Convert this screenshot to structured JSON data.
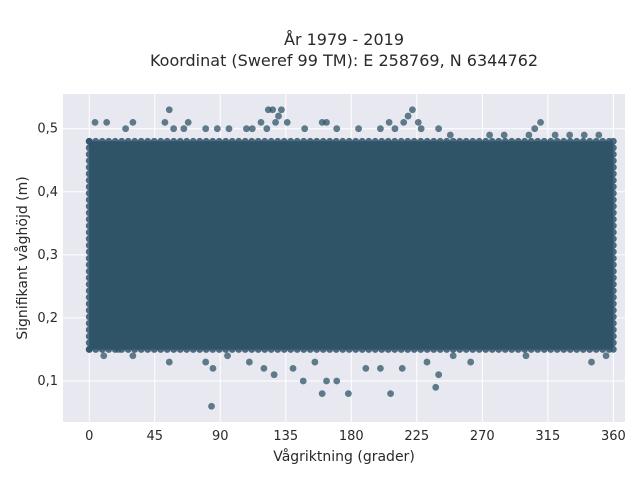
{
  "chart_data": {
    "type": "scatter",
    "title": [
      "År 1979 - 2019",
      "Koordinat (Sweref 99 TM): E 258769, N 6344762"
    ],
    "xlabel": "Vågriktning (grader)",
    "ylabel": "Signifikant våghöjd (m)",
    "xlim": [
      -18,
      368
    ],
    "ylim": [
      0.035,
      0.555
    ],
    "xticks": [
      0,
      45,
      90,
      135,
      180,
      225,
      270,
      315,
      360
    ],
    "xtick_labels": [
      "0",
      "45",
      "90",
      "135",
      "180",
      "225",
      "270",
      "315",
      "360"
    ],
    "yticks": [
      0.1,
      0.2,
      0.3,
      0.4,
      0.5
    ],
    "ytick_labels": [
      "0,1",
      "0,2",
      "0,3",
      "0,4",
      "0,5"
    ],
    "grid": true,
    "legend": "none",
    "colors": {
      "marker": "#2f5468",
      "plot_bg": "#e8e8f0",
      "grid": "#ffffff"
    },
    "dense_region": {
      "x": [
        0,
        360
      ],
      "y": [
        0.15,
        0.48
      ]
    },
    "points": [
      [
        84,
        0.06
      ],
      [
        160,
        0.08
      ],
      [
        178,
        0.08
      ],
      [
        207,
        0.08
      ],
      [
        163,
        0.1
      ],
      [
        170,
        0.1
      ],
      [
        238,
        0.09
      ],
      [
        240,
        0.11
      ],
      [
        127,
        0.11
      ],
      [
        147,
        0.1
      ],
      [
        200,
        0.12
      ],
      [
        190,
        0.12
      ],
      [
        140,
        0.12
      ],
      [
        120,
        0.12
      ],
      [
        215,
        0.12
      ],
      [
        55,
        0.13
      ],
      [
        80,
        0.13
      ],
      [
        85,
        0.12
      ],
      [
        232,
        0.13
      ],
      [
        262,
        0.13
      ],
      [
        345,
        0.13
      ],
      [
        30,
        0.14
      ],
      [
        10,
        0.14
      ],
      [
        95,
        0.14
      ],
      [
        110,
        0.13
      ],
      [
        155,
        0.13
      ],
      [
        250,
        0.14
      ],
      [
        300,
        0.14
      ],
      [
        355,
        0.14
      ],
      [
        20,
        0.15
      ],
      [
        4,
        0.51
      ],
      [
        12,
        0.51
      ],
      [
        25,
        0.5
      ],
      [
        30,
        0.51
      ],
      [
        52,
        0.51
      ],
      [
        55,
        0.53
      ],
      [
        58,
        0.5
      ],
      [
        68,
        0.51
      ],
      [
        65,
        0.5
      ],
      [
        80,
        0.5
      ],
      [
        88,
        0.5
      ],
      [
        96,
        0.5
      ],
      [
        108,
        0.5
      ],
      [
        112,
        0.5
      ],
      [
        118,
        0.51
      ],
      [
        122,
        0.5
      ],
      [
        123,
        0.53
      ],
      [
        126,
        0.53
      ],
      [
        128,
        0.51
      ],
      [
        130,
        0.52
      ],
      [
        132,
        0.53
      ],
      [
        136,
        0.51
      ],
      [
        148,
        0.5
      ],
      [
        160,
        0.51
      ],
      [
        163,
        0.51
      ],
      [
        170,
        0.5
      ],
      [
        185,
        0.5
      ],
      [
        200,
        0.5
      ],
      [
        206,
        0.51
      ],
      [
        210,
        0.5
      ],
      [
        216,
        0.51
      ],
      [
        219,
        0.52
      ],
      [
        222,
        0.53
      ],
      [
        226,
        0.51
      ],
      [
        228,
        0.5
      ],
      [
        240,
        0.5
      ],
      [
        248,
        0.49
      ],
      [
        275,
        0.49
      ],
      [
        285,
        0.49
      ],
      [
        302,
        0.49
      ],
      [
        306,
        0.5
      ],
      [
        310,
        0.51
      ],
      [
        320,
        0.49
      ],
      [
        330,
        0.49
      ],
      [
        340,
        0.49
      ],
      [
        350,
        0.49
      ]
    ]
  }
}
